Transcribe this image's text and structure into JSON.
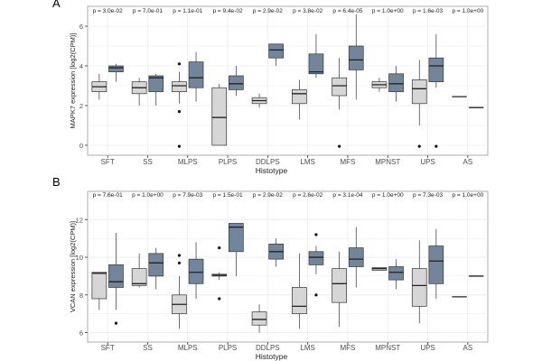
{
  "colors": {
    "light": "#d6d6d6",
    "dark": "#73859a",
    "panel_border": "#9a9a9a",
    "grid": "#ebebeb",
    "text": "#222222",
    "axis_text": "#4d4d4d"
  },
  "chart_data": [
    {
      "type": "boxplot",
      "panel_label": "A",
      "ylabel": "MAPK7 expression [log2(CPM)]",
      "xlabel": "Histotype",
      "ylim": [
        -0.5,
        7
      ],
      "yticks": [
        0,
        2,
        4,
        6
      ],
      "categories": [
        "SFT",
        "SS",
        "MLPS",
        "PLPS",
        "DDLPS",
        "LMS",
        "MFS",
        "MPNST",
        "UPS",
        "AS"
      ],
      "pvalues": [
        "p = 3.0e-02",
        "p = 7.0e-01",
        "p = 1.1e-01",
        "p = 9.4e-02",
        "p = 2.9e-02",
        "p = 3.8e-02",
        "p = 6.4e-05",
        "p = 1.0e+00",
        "p = 1.6e-03",
        "p = 1.0e+00"
      ],
      "series": [
        {
          "name": "light",
          "boxes": [
            {
              "q1": 2.7,
              "median": 2.95,
              "q3": 3.2,
              "wlow": 2.3,
              "whigh": 3.6,
              "outliers": []
            },
            {
              "q1": 2.6,
              "median": 2.9,
              "q3": 3.2,
              "wlow": 2.0,
              "whigh": 3.4,
              "outliers": []
            },
            {
              "q1": 2.7,
              "median": 3.0,
              "q3": 3.2,
              "wlow": 2.1,
              "whigh": 3.7,
              "outliers": [
                4.1,
                1.7,
                -0.05
              ]
            },
            {
              "q1": 0.0,
              "median": 1.4,
              "q3": 2.9,
              "wlow": 0.0,
              "whigh": 3.1,
              "outliers": []
            },
            {
              "q1": 2.1,
              "median": 2.25,
              "q3": 2.4,
              "wlow": 1.9,
              "whigh": 2.6,
              "outliers": []
            },
            {
              "q1": 2.1,
              "median": 2.6,
              "q3": 2.8,
              "wlow": 1.3,
              "whigh": 3.3,
              "outliers": []
            },
            {
              "q1": 2.5,
              "median": 3.0,
              "q3": 3.4,
              "wlow": 1.8,
              "whigh": 4.4,
              "outliers": [
                -0.05
              ]
            },
            {
              "q1": 2.9,
              "median": 3.05,
              "q3": 3.2,
              "wlow": 2.7,
              "whigh": 3.4,
              "outliers": []
            },
            {
              "q1": 2.1,
              "median": 2.85,
              "q3": 3.3,
              "wlow": 1.0,
              "whigh": 4.3,
              "outliers": [
                -0.05
              ]
            },
            {
              "q1": 2.45,
              "median": 2.45,
              "q3": 2.45,
              "wlow": 2.45,
              "whigh": 2.45,
              "outliers": []
            }
          ]
        },
        {
          "name": "dark",
          "boxes": [
            {
              "q1": 3.7,
              "median": 3.9,
              "q3": 4.0,
              "wlow": 3.2,
              "whigh": 4.1,
              "outliers": []
            },
            {
              "q1": 2.7,
              "median": 3.4,
              "q3": 3.5,
              "wlow": 2.0,
              "whigh": 3.6,
              "outliers": []
            },
            {
              "q1": 2.9,
              "median": 3.4,
              "q3": 4.2,
              "wlow": 2.2,
              "whigh": 4.7,
              "outliers": []
            },
            {
              "q1": 2.8,
              "median": 3.1,
              "q3": 3.5,
              "wlow": 2.5,
              "whigh": 4.0,
              "outliers": []
            },
            {
              "q1": 4.4,
              "median": 4.8,
              "q3": 5.1,
              "wlow": 4.0,
              "whigh": 5.1,
              "outliers": []
            },
            {
              "q1": 3.6,
              "median": 3.7,
              "q3": 4.6,
              "wlow": 3.4,
              "whigh": 5.6,
              "outliers": []
            },
            {
              "q1": 3.8,
              "median": 4.3,
              "q3": 5.0,
              "wlow": 2.3,
              "whigh": 6.6,
              "outliers": []
            },
            {
              "q1": 2.7,
              "median": 3.1,
              "q3": 3.6,
              "wlow": 2.2,
              "whigh": 4.0,
              "outliers": []
            },
            {
              "q1": 3.2,
              "median": 4.0,
              "q3": 4.4,
              "wlow": 2.9,
              "whigh": 5.6,
              "outliers": [
                -0.05
              ]
            },
            {
              "q1": 1.9,
              "median": 1.9,
              "q3": 1.9,
              "wlow": 1.9,
              "whigh": 1.9,
              "outliers": []
            }
          ]
        }
      ]
    },
    {
      "type": "boxplot",
      "panel_label": "B",
      "ylabel": "VCAN expression [log2(CPM)]",
      "xlabel": "Histotype",
      "ylim": [
        5.5,
        13.5
      ],
      "yticks": [
        6,
        8,
        10,
        12
      ],
      "categories": [
        "SFT",
        "SS",
        "MLPS",
        "PLPS",
        "DDLPS",
        "LMS",
        "MFS",
        "MPNST",
        "UPS",
        "AS"
      ],
      "pvalues": [
        "p = 7.6e-01",
        "p = 1.0e+00",
        "p = 7.9e-03",
        "p = 1.5e-01",
        "p = 2.9e-02",
        "p = 2.6e-02",
        "p = 3.1e-04",
        "p = 1.0e+00",
        "p = 7.3e-03",
        "p = 1.0e+00"
      ],
      "series": [
        {
          "name": "light",
          "boxes": [
            {
              "q1": 7.8,
              "median": 9.15,
              "q3": 9.2,
              "wlow": 7.2,
              "whigh": 9.2,
              "outliers": []
            },
            {
              "q1": 8.5,
              "median": 8.6,
              "q3": 9.4,
              "wlow": 8.4,
              "whigh": 10.2,
              "outliers": []
            },
            {
              "q1": 7.0,
              "median": 7.5,
              "q3": 8.0,
              "wlow": 6.2,
              "whigh": 9.0,
              "outliers": [
                10.1,
                9.7
              ]
            },
            {
              "q1": 9.0,
              "median": 9.05,
              "q3": 9.1,
              "wlow": 8.8,
              "whigh": 9.2,
              "outliers": [
                10.5,
                7.8
              ]
            },
            {
              "q1": 6.4,
              "median": 6.7,
              "q3": 7.1,
              "wlow": 6.0,
              "whigh": 7.5,
              "outliers": []
            },
            {
              "q1": 7.0,
              "median": 7.4,
              "q3": 8.4,
              "wlow": 6.2,
              "whigh": 10.2,
              "outliers": []
            },
            {
              "q1": 7.6,
              "median": 8.6,
              "q3": 9.4,
              "wlow": 6.3,
              "whigh": 10.3,
              "outliers": []
            },
            {
              "q1": 9.3,
              "median": 9.4,
              "q3": 9.45,
              "wlow": 9.3,
              "whigh": 9.45,
              "outliers": []
            },
            {
              "q1": 7.4,
              "median": 8.5,
              "q3": 9.4,
              "wlow": 6.5,
              "whigh": 10.9,
              "outliers": []
            },
            {
              "q1": 7.9,
              "median": 7.9,
              "q3": 7.9,
              "wlow": 7.9,
              "whigh": 7.9,
              "outliers": []
            }
          ]
        },
        {
          "name": "dark",
          "boxes": [
            {
              "q1": 8.4,
              "median": 8.7,
              "q3": 9.6,
              "wlow": 7.2,
              "whigh": 11.3,
              "outliers": [
                6.5
              ]
            },
            {
              "q1": 9.0,
              "median": 9.7,
              "q3": 10.2,
              "wlow": 8.3,
              "whigh": 10.5,
              "outliers": []
            },
            {
              "q1": 8.6,
              "median": 9.2,
              "q3": 9.9,
              "wlow": 7.8,
              "whigh": 10.8,
              "outliers": []
            },
            {
              "q1": 10.3,
              "median": 11.6,
              "q3": 11.8,
              "wlow": 9.0,
              "whigh": 11.8,
              "outliers": []
            },
            {
              "q1": 9.9,
              "median": 10.3,
              "q3": 10.7,
              "wlow": 9.5,
              "whigh": 11.0,
              "outliers": []
            },
            {
              "q1": 9.6,
              "median": 10.0,
              "q3": 10.3,
              "wlow": 9.1,
              "whigh": 10.6,
              "outliers": [
                11.2,
                8.0
              ]
            },
            {
              "q1": 9.5,
              "median": 9.9,
              "q3": 10.5,
              "wlow": 8.4,
              "whigh": 11.6,
              "outliers": []
            },
            {
              "q1": 8.8,
              "median": 9.2,
              "q3": 9.5,
              "wlow": 8.3,
              "whigh": 9.9,
              "outliers": []
            },
            {
              "q1": 8.6,
              "median": 9.8,
              "q3": 10.6,
              "wlow": 7.8,
              "whigh": 11.5,
              "outliers": []
            },
            {
              "q1": 9.0,
              "median": 9.0,
              "q3": 9.0,
              "wlow": 9.0,
              "whigh": 9.0,
              "outliers": []
            }
          ]
        }
      ]
    }
  ]
}
